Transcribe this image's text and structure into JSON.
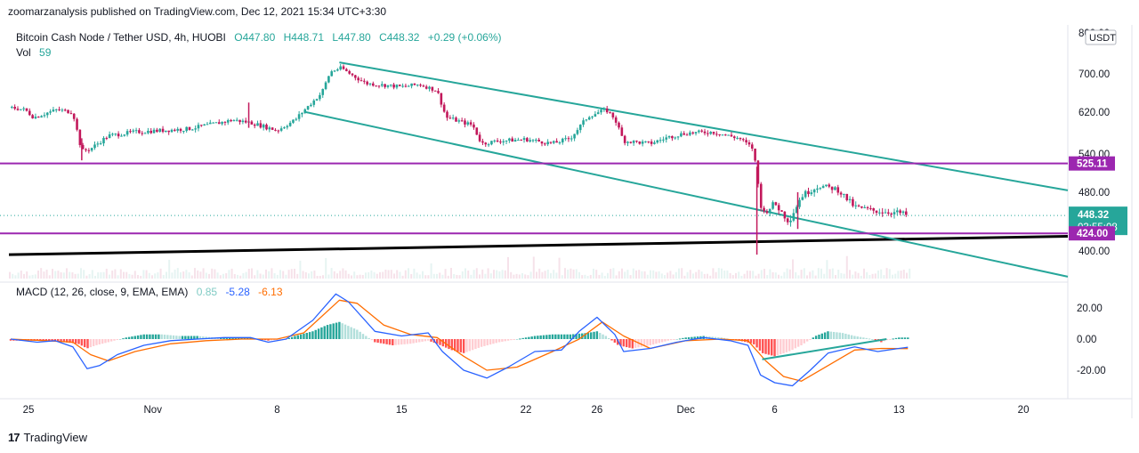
{
  "header": {
    "published": "zoomarzanalysis published on TradingView.com, Dec 12, 2021 15:34 UTC+3:30"
  },
  "legend": {
    "symbol": "Bitcoin Cash Node / Tether USD, 4h, HUOBI",
    "open": "O447.80",
    "high": "H448.71",
    "low": "L447.80",
    "close": "C448.32",
    "change": "+0.29 (+0.06%)",
    "vol_label": "Vol",
    "vol_value": "59"
  },
  "macd_legend": {
    "label": "MACD (12, 26, close, 9, EMA, EMA)",
    "hist": "0.85",
    "macd": "-5.28",
    "signal": "-6.13"
  },
  "footer": {
    "brand": "TradingView"
  },
  "colors": {
    "up": "#26a69a",
    "down": "#c2185b",
    "channel": "#26a69a",
    "support": "#9c27b0",
    "trendline": "#000000",
    "macd_line": "#2962ff",
    "signal_line": "#ff6d00",
    "hist_up_strong": "#26a69a",
    "hist_up_weak": "#b2dfdb",
    "hist_down_strong": "#ff5252",
    "hist_down_weak": "#ffcdd2"
  },
  "chart_data": [
    {
      "type": "candlestick",
      "title": "Bitcoin Cash Node / Tether USD, 4h, HUOBI",
      "currency": "USDT",
      "ylim": [
        380,
        800
      ],
      "yticks": [
        "800.00",
        "700.00",
        "620.00",
        "540.00",
        "480.00",
        "400.00"
      ],
      "xticks": [
        {
          "label": "25",
          "day": 0
        },
        {
          "label": "Nov",
          "day": 7
        },
        {
          "label": "8",
          "day": 14
        },
        {
          "label": "15",
          "day": 21
        },
        {
          "label": "22",
          "day": 28
        },
        {
          "label": "26",
          "day": 32
        },
        {
          "label": "Dec",
          "day": 37
        },
        {
          "label": "6",
          "day": 42
        },
        {
          "label": "13",
          "day": 49
        },
        {
          "label": "20",
          "day": 56
        }
      ],
      "price_path": [
        [
          -1.1,
          630
        ],
        [
          -0.2,
          625
        ],
        [
          0.3,
          610
        ],
        [
          1.6,
          625
        ],
        [
          2.5,
          620
        ],
        [
          3.0,
          545
        ],
        [
          3.5,
          550
        ],
        [
          4.5,
          575
        ],
        [
          6.0,
          582
        ],
        [
          7.5,
          585
        ],
        [
          9.0,
          588
        ],
        [
          10.5,
          598
        ],
        [
          11.5,
          605
        ],
        [
          12.5,
          600
        ],
        [
          13.5,
          590
        ],
        [
          14.0,
          585
        ],
        [
          15.0,
          605
        ],
        [
          16.5,
          660
        ],
        [
          17.0,
          705
        ],
        [
          17.6,
          715
        ],
        [
          18.1,
          700
        ],
        [
          19.0,
          680
        ],
        [
          21.0,
          673
        ],
        [
          22.0,
          678
        ],
        [
          23.0,
          665
        ],
        [
          23.5,
          610
        ],
        [
          25.0,
          595
        ],
        [
          25.5,
          560
        ],
        [
          26.5,
          565
        ],
        [
          28.0,
          568
        ],
        [
          29.5,
          560
        ],
        [
          30.5,
          570
        ],
        [
          31.5,
          612
        ],
        [
          32.5,
          625
        ],
        [
          33.0,
          608
        ],
        [
          33.5,
          565
        ],
        [
          35.0,
          560
        ],
        [
          36.0,
          572
        ],
        [
          37.0,
          580
        ],
        [
          38.5,
          582
        ],
        [
          40.0,
          570
        ],
        [
          40.8,
          550
        ],
        [
          41.0,
          505
        ],
        [
          41.3,
          450
        ],
        [
          42.0,
          465
        ],
        [
          42.8,
          440
        ],
        [
          43.5,
          475
        ],
        [
          44.5,
          490
        ],
        [
          45.5,
          485
        ],
        [
          46.5,
          460
        ],
        [
          47.5,
          455
        ],
        [
          49.0,
          452
        ],
        [
          49.5,
          448.32
        ]
      ],
      "wicks": [
        {
          "day": 3.0,
          "low": 530,
          "high": 570
        },
        {
          "day": 12.4,
          "low": 590,
          "high": 640
        },
        {
          "day": 41.0,
          "low": 395,
          "high": 520
        },
        {
          "day": 43.3,
          "low": 430,
          "high": 480
        }
      ],
      "last_price": "448.32",
      "countdown": "03:55:08",
      "support_levels": [
        {
          "value": 525.11,
          "label": "525.11"
        },
        {
          "value": 424.0,
          "label": "424.00"
        }
      ],
      "channel_upper": [
        [
          17.5,
          728
        ],
        [
          58.5,
          483
        ]
      ],
      "channel_lower": [
        [
          15.5,
          621
        ],
        [
          58.5,
          365
        ]
      ],
      "trendline": [
        [
          -1.1,
          395
        ],
        [
          58.5,
          420
        ]
      ],
      "volume_note": "Vol 59"
    },
    {
      "type": "macd",
      "title": "MACD (12, 26, close, 9, EMA, EMA)",
      "ylim": [
        -32,
        30
      ],
      "yticks": [
        "20.00",
        "0.00",
        "-20.00"
      ],
      "macd_path": [
        [
          -1.0,
          0
        ],
        [
          0.5,
          -2
        ],
        [
          1.5,
          -1
        ],
        [
          2.5,
          -5
        ],
        [
          3.3,
          -19
        ],
        [
          4.0,
          -17
        ],
        [
          5.0,
          -10
        ],
        [
          6.5,
          -4
        ],
        [
          8.0,
          -1
        ],
        [
          9.5,
          0
        ],
        [
          11.0,
          1
        ],
        [
          12.5,
          1
        ],
        [
          13.5,
          -2
        ],
        [
          14.5,
          0
        ],
        [
          16.0,
          12
        ],
        [
          17.3,
          29
        ],
        [
          18.0,
          24
        ],
        [
          19.5,
          5
        ],
        [
          21.0,
          2
        ],
        [
          22.5,
          4
        ],
        [
          23.3,
          -8
        ],
        [
          24.5,
          -20
        ],
        [
          25.8,
          -25
        ],
        [
          27.0,
          -18
        ],
        [
          28.5,
          -8
        ],
        [
          30.0,
          -7
        ],
        [
          31.0,
          5
        ],
        [
          32.0,
          14
        ],
        [
          33.0,
          3
        ],
        [
          33.5,
          -8
        ],
        [
          35.0,
          -6
        ],
        [
          36.5,
          -2
        ],
        [
          38.0,
          1
        ],
        [
          39.5,
          -1
        ],
        [
          40.5,
          -4
        ],
        [
          41.2,
          -23
        ],
        [
          42.0,
          -28
        ],
        [
          43.0,
          -30
        ],
        [
          44.0,
          -20
        ],
        [
          45.0,
          -9
        ],
        [
          46.5,
          -5
        ],
        [
          47.8,
          -8
        ],
        [
          49.0,
          -6
        ],
        [
          49.5,
          -5.28
        ]
      ],
      "signal_path": [
        [
          -1.0,
          0
        ],
        [
          1.0,
          -1
        ],
        [
          2.5,
          -2
        ],
        [
          3.5,
          -10
        ],
        [
          4.5,
          -14
        ],
        [
          6.0,
          -8
        ],
        [
          8.0,
          -3
        ],
        [
          10.0,
          -1
        ],
        [
          12.0,
          0
        ],
        [
          14.0,
          0
        ],
        [
          15.5,
          4
        ],
        [
          17.5,
          25
        ],
        [
          18.5,
          23
        ],
        [
          20.0,
          9
        ],
        [
          21.5,
          3
        ],
        [
          23.0,
          1
        ],
        [
          24.5,
          -11
        ],
        [
          25.8,
          -20
        ],
        [
          27.5,
          -18
        ],
        [
          29.5,
          -8
        ],
        [
          31.0,
          0
        ],
        [
          32.3,
          11
        ],
        [
          33.5,
          2
        ],
        [
          35.0,
          -6
        ],
        [
          37.0,
          -1
        ],
        [
          39.0,
          0
        ],
        [
          40.5,
          -1
        ],
        [
          41.5,
          -14
        ],
        [
          42.5,
          -24
        ],
        [
          43.5,
          -27
        ],
        [
          45.0,
          -17
        ],
        [
          46.5,
          -7
        ],
        [
          48.0,
          -6
        ],
        [
          49.5,
          -6.13
        ]
      ],
      "histogram": [
        [
          -1.0,
          -1
        ],
        [
          0.0,
          -1
        ],
        [
          1.0,
          -1
        ],
        [
          2.0,
          -2
        ],
        [
          2.8,
          -3
        ],
        [
          3.3,
          -6
        ],
        [
          3.8,
          -4
        ],
        [
          4.5,
          -2
        ],
        [
          5.5,
          1
        ],
        [
          6.5,
          3
        ],
        [
          7.5,
          3
        ],
        [
          8.5,
          2
        ],
        [
          9.5,
          2
        ],
        [
          10.5,
          1
        ],
        [
          11.5,
          1
        ],
        [
          12.5,
          1
        ],
        [
          13.5,
          -1
        ],
        [
          14.5,
          0
        ],
        [
          15.0,
          2
        ],
        [
          16.0,
          5
        ],
        [
          16.8,
          9
        ],
        [
          17.5,
          11
        ],
        [
          18.5,
          6
        ],
        [
          19.5,
          -2
        ],
        [
          20.5,
          -4
        ],
        [
          21.5,
          -3
        ],
        [
          22.0,
          -2
        ],
        [
          22.5,
          -1
        ],
        [
          23.0,
          -3
        ],
        [
          23.8,
          -7
        ],
        [
          24.5,
          -9
        ],
        [
          25.5,
          -5
        ],
        [
          26.5,
          -2
        ],
        [
          27.5,
          0
        ],
        [
          28.5,
          2
        ],
        [
          29.5,
          3
        ],
        [
          30.5,
          3
        ],
        [
          31.5,
          4
        ],
        [
          32.0,
          5
        ],
        [
          32.5,
          2
        ],
        [
          33.2,
          -4
        ],
        [
          34.0,
          -6
        ],
        [
          35.0,
          -4
        ],
        [
          36.0,
          -1
        ],
        [
          37.0,
          1
        ],
        [
          38.0,
          2
        ],
        [
          39.0,
          1
        ],
        [
          40.0,
          -1
        ],
        [
          40.8,
          -3
        ],
        [
          41.3,
          -9
        ],
        [
          42.0,
          -11
        ],
        [
          42.8,
          -8
        ],
        [
          43.5,
          -4
        ],
        [
          44.3,
          2
        ],
        [
          45.0,
          5
        ],
        [
          45.8,
          4
        ],
        [
          46.5,
          2
        ],
        [
          47.5,
          0
        ],
        [
          48.0,
          -2
        ],
        [
          48.5,
          0
        ],
        [
          49.0,
          1
        ],
        [
          49.5,
          1
        ]
      ],
      "divergence_line": [
        [
          41.3,
          -13
        ],
        [
          48.3,
          0
        ]
      ],
      "current_values": {
        "hist": 0.85,
        "macd": -5.28,
        "signal": -6.13
      }
    }
  ]
}
